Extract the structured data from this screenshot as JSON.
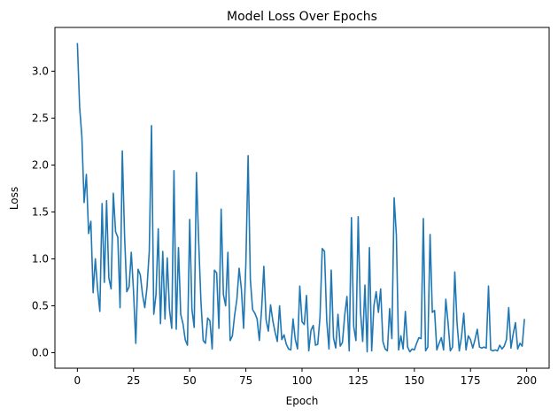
{
  "chart_data": {
    "type": "line",
    "title": "Model Loss Over Epochs",
    "xlabel": "Epoch",
    "ylabel": "Loss",
    "xlim": [
      -10,
      210
    ],
    "ylim": [
      -0.165,
      3.466
    ],
    "xticks": [
      0,
      25,
      50,
      75,
      100,
      125,
      150,
      175,
      200
    ],
    "yticks": [
      0.0,
      0.5,
      1.0,
      1.5,
      2.0,
      2.5,
      3.0
    ],
    "ytick_labels": [
      "0.0",
      "0.5",
      "1.0",
      "1.5",
      "2.0",
      "2.5",
      "3.0"
    ],
    "grid": false,
    "series_color": "#1f77b4",
    "series": [
      {
        "values": [
          3.3,
          2.62,
          2.3,
          1.6,
          1.9,
          1.27,
          1.4,
          0.64,
          1.0,
          0.68,
          0.44,
          1.59,
          0.75,
          1.62,
          0.8,
          0.68,
          1.7,
          1.29,
          1.23,
          0.48,
          2.15,
          1.25,
          0.65,
          0.7,
          1.07,
          0.65,
          0.1,
          0.89,
          0.83,
          0.62,
          0.48,
          0.7,
          1.08,
          2.42,
          0.41,
          0.62,
          1.32,
          0.31,
          1.08,
          0.36,
          1.01,
          0.46,
          0.26,
          1.94,
          0.25,
          1.12,
          0.41,
          0.31,
          0.14,
          0.08,
          1.42,
          0.46,
          0.27,
          1.92,
          1.18,
          0.55,
          0.13,
          0.1,
          0.37,
          0.34,
          0.04,
          0.88,
          0.85,
          0.26,
          1.53,
          0.62,
          0.5,
          1.07,
          0.13,
          0.18,
          0.4,
          0.57,
          0.9,
          0.68,
          0.26,
          0.95,
          2.1,
          0.78,
          0.46,
          0.42,
          0.36,
          0.13,
          0.46,
          0.92,
          0.35,
          0.23,
          0.51,
          0.34,
          0.22,
          0.12,
          0.5,
          0.14,
          0.19,
          0.09,
          0.04,
          0.03,
          0.36,
          0.14,
          0.04,
          0.71,
          0.33,
          0.3,
          0.61,
          0.02,
          0.24,
          0.29,
          0.08,
          0.09,
          0.38,
          1.11,
          1.08,
          0.34,
          0.04,
          0.88,
          0.16,
          0.05,
          0.41,
          0.07,
          0.11,
          0.4,
          0.6,
          0.02,
          1.44,
          0.28,
          0.13,
          1.45,
          0.45,
          0.12,
          0.72,
          0.01,
          1.12,
          0.02,
          0.5,
          0.65,
          0.43,
          0.68,
          0.12,
          0.04,
          0.02,
          0.47,
          0.15,
          1.65,
          1.25,
          0.03,
          0.18,
          0.04,
          0.44,
          0.06,
          0.01,
          0.04,
          0.03,
          0.1,
          0.16,
          0.15,
          1.43,
          0.02,
          0.06,
          1.26,
          0.43,
          0.45,
          0.03,
          0.1,
          0.16,
          0.03,
          0.57,
          0.32,
          0.02,
          0.06,
          0.86,
          0.32,
          0.02,
          0.17,
          0.42,
          0.03,
          0.18,
          0.14,
          0.05,
          0.14,
          0.25,
          0.06,
          0.05,
          0.06,
          0.05,
          0.71,
          0.03,
          0.02,
          0.03,
          0.02,
          0.08,
          0.04,
          0.07,
          0.14,
          0.48,
          0.05,
          0.2,
          0.32,
          0.04,
          0.1,
          0.07,
          0.36
        ]
      }
    ]
  }
}
